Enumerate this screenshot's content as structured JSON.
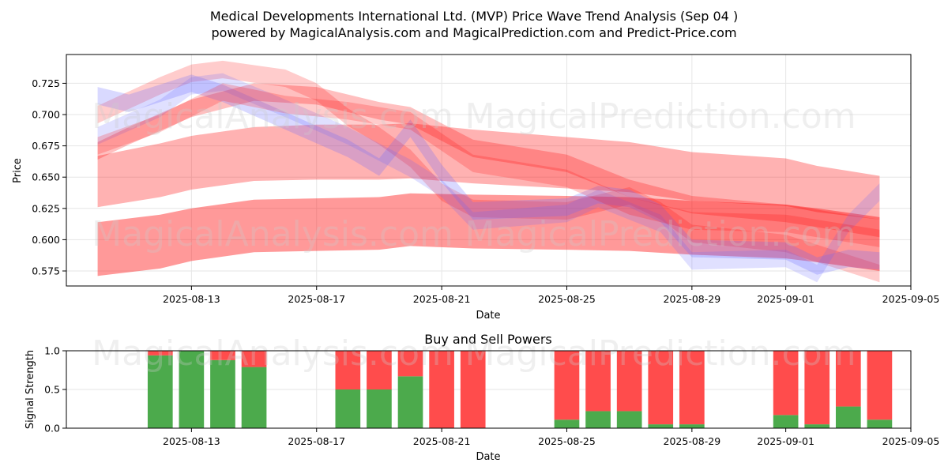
{
  "title_line1": "Medical Developments International Ltd. (MVP) Price Wave Trend Analysis (Sep 04 )",
  "title_line2": "powered by MagicalAnalysis.com and MagicalPrediction.com and Predict-Price.com",
  "watermarks": [
    "MagicalAnalysis.com",
    "MagicalPrediction.com"
  ],
  "chart_data": [
    {
      "type": "area",
      "title": "Medical Developments International Ltd. (MVP) Price Wave Trend Analysis (Sep 04 )",
      "xlabel": "Date",
      "ylabel": "Price",
      "x_ticks": [
        "2025-08-13",
        "2025-08-17",
        "2025-08-21",
        "2025-08-25",
        "2025-08-29",
        "2025-09-01",
        "2025-09-05"
      ],
      "y_ticks": [
        "0.575",
        "0.600",
        "0.625",
        "0.650",
        "0.675",
        "0.700",
        "0.725"
      ],
      "xlim": [
        "2025-08-09",
        "2025-09-05"
      ],
      "ylim": [
        0.563,
        0.748
      ],
      "grid": true,
      "bands": [
        {
          "color": "#ff0000",
          "opacity": 0.3,
          "points": [
            [
              "2025-08-10",
              0.667,
              0.626
            ],
            [
              "2025-08-12",
              0.677,
              0.634
            ],
            [
              "2025-08-13",
              0.683,
              0.64
            ],
            [
              "2025-08-15",
              0.69,
              0.647
            ],
            [
              "2025-08-17",
              0.692,
              0.648
            ],
            [
              "2025-08-19",
              0.692,
              0.648
            ],
            [
              "2025-08-20",
              0.693,
              0.649
            ],
            [
              "2025-08-22",
              0.688,
              0.645
            ],
            [
              "2025-08-25",
              0.682,
              0.641
            ],
            [
              "2025-08-27",
              0.678,
              0.638
            ],
            [
              "2025-08-29",
              0.67,
              0.631
            ],
            [
              "2025-09-01",
              0.665,
              0.627
            ],
            [
              "2025-09-02",
              0.659,
              0.622
            ],
            [
              "2025-09-04",
              0.651,
              0.616
            ]
          ]
        },
        {
          "color": "#ff0000",
          "opacity": 0.4,
          "points": [
            [
              "2025-08-10",
              0.614,
              0.571
            ],
            [
              "2025-08-12",
              0.62,
              0.577
            ],
            [
              "2025-08-13",
              0.625,
              0.583
            ],
            [
              "2025-08-15",
              0.632,
              0.59
            ],
            [
              "2025-08-17",
              0.633,
              0.591
            ],
            [
              "2025-08-19",
              0.634,
              0.592
            ],
            [
              "2025-08-20",
              0.637,
              0.595
            ],
            [
              "2025-08-22",
              0.636,
              0.593
            ],
            [
              "2025-08-25",
              0.635,
              0.592
            ],
            [
              "2025-08-27",
              0.634,
              0.591
            ],
            [
              "2025-08-29",
              0.631,
              0.588
            ],
            [
              "2025-09-01",
              0.628,
              0.585
            ],
            [
              "2025-09-02",
              0.625,
              0.582
            ],
            [
              "2025-09-04",
              0.618,
              0.575
            ]
          ]
        },
        {
          "color": "#ff0000",
          "opacity": 0.25,
          "points": [
            [
              "2025-08-10",
              0.678,
              0.664
            ],
            [
              "2025-08-11",
              0.69,
              0.676
            ],
            [
              "2025-08-13",
              0.712,
              0.698
            ],
            [
              "2025-08-15",
              0.725,
              0.711
            ],
            [
              "2025-08-17",
              0.722,
              0.708
            ],
            [
              "2025-08-18",
              0.716,
              0.702
            ],
            [
              "2025-08-19",
              0.71,
              0.696
            ],
            [
              "2025-08-20",
              0.706,
              0.692
            ],
            [
              "2025-08-22",
              0.68,
              0.666
            ],
            [
              "2025-08-25",
              0.668,
              0.654
            ],
            [
              "2025-08-27",
              0.648,
              0.634
            ],
            [
              "2025-08-29",
              0.635,
              0.621
            ],
            [
              "2025-09-01",
              0.628,
              0.614
            ],
            [
              "2025-09-03",
              0.62,
              0.606
            ],
            [
              "2025-09-04",
              0.616,
              0.602
            ]
          ]
        },
        {
          "color": "#ff0000",
          "opacity": 0.2,
          "points": [
            [
              "2025-08-10",
              0.707,
              0.693
            ],
            [
              "2025-08-12",
              0.73,
              0.716
            ],
            [
              "2025-08-13",
              0.74,
              0.726
            ],
            [
              "2025-08-14",
              0.743,
              0.729
            ],
            [
              "2025-08-16",
              0.736,
              0.722
            ],
            [
              "2025-08-17",
              0.725,
              0.711
            ],
            [
              "2025-08-18",
              0.705,
              0.691
            ],
            [
              "2025-08-19",
              0.69,
              0.676
            ],
            [
              "2025-08-20",
              0.672,
              0.658
            ],
            [
              "2025-08-21",
              0.645,
              0.631
            ],
            [
              "2025-08-22",
              0.632,
              0.618
            ],
            [
              "2025-08-25",
              0.63,
              0.616
            ],
            [
              "2025-08-27",
              0.642,
              0.628
            ],
            [
              "2025-08-28",
              0.63,
              0.616
            ],
            [
              "2025-08-29",
              0.612,
              0.598
            ],
            [
              "2025-09-01",
              0.604,
              0.59
            ],
            [
              "2025-09-02",
              0.596,
              0.582
            ],
            [
              "2025-09-04",
              0.58,
              0.566
            ]
          ]
        },
        {
          "color": "#6666ff",
          "opacity": 0.25,
          "points": [
            [
              "2025-08-10",
              0.722,
              0.708
            ],
            [
              "2025-08-11",
              0.716,
              0.702
            ],
            [
              "2025-08-13",
              0.732,
              0.718
            ],
            [
              "2025-08-14",
              0.724,
              0.71
            ],
            [
              "2025-08-16",
              0.702,
              0.688
            ],
            [
              "2025-08-18",
              0.68,
              0.666
            ],
            [
              "2025-08-19",
              0.665,
              0.651
            ],
            [
              "2025-08-20",
              0.696,
              0.682
            ],
            [
              "2025-08-21",
              0.66,
              0.646
            ],
            [
              "2025-08-22",
              0.63,
              0.616
            ],
            [
              "2025-08-25",
              0.633,
              0.619
            ],
            [
              "2025-08-26",
              0.643,
              0.629
            ],
            [
              "2025-08-27",
              0.64,
              0.626
            ],
            [
              "2025-08-28",
              0.628,
              0.614
            ],
            [
              "2025-08-29",
              0.6,
              0.586
            ],
            [
              "2025-09-01",
              0.598,
              0.584
            ],
            [
              "2025-09-02",
              0.586,
              0.572
            ],
            [
              "2025-09-03",
              0.592,
              0.578
            ],
            [
              "2025-09-04",
              0.59,
              0.576
            ]
          ]
        },
        {
          "color": "#6666ff",
          "opacity": 0.2,
          "points": [
            [
              "2025-08-10",
              0.69,
              0.676
            ],
            [
              "2025-08-12",
              0.712,
              0.698
            ],
            [
              "2025-08-13",
              0.73,
              0.716
            ],
            [
              "2025-08-14",
              0.733,
              0.719
            ],
            [
              "2025-08-16",
              0.712,
              0.698
            ],
            [
              "2025-08-18",
              0.69,
              0.676
            ],
            [
              "2025-08-20",
              0.664,
              0.65
            ],
            [
              "2025-08-21",
              0.648,
              0.634
            ],
            [
              "2025-08-22",
              0.622,
              0.608
            ],
            [
              "2025-08-25",
              0.628,
              0.614
            ],
            [
              "2025-08-26",
              0.64,
              0.626
            ],
            [
              "2025-08-28",
              0.62,
              0.606
            ],
            [
              "2025-08-29",
              0.59,
              0.576
            ],
            [
              "2025-09-01",
              0.592,
              0.578
            ],
            [
              "2025-09-02",
              0.58,
              0.566
            ],
            [
              "2025-09-03",
              0.62,
              0.606
            ],
            [
              "2025-09-04",
              0.645,
              0.631
            ]
          ]
        },
        {
          "color": "#ff0000",
          "opacity": 0.2,
          "points": [
            [
              "2025-08-10",
              0.682,
              0.668
            ],
            [
              "2025-08-12",
              0.7,
              0.686
            ],
            [
              "2025-08-14",
              0.725,
              0.711
            ],
            [
              "2025-08-16",
              0.715,
              0.701
            ],
            [
              "2025-08-18",
              0.71,
              0.696
            ],
            [
              "2025-08-20",
              0.702,
              0.688
            ],
            [
              "2025-08-22",
              0.668,
              0.654
            ],
            [
              "2025-08-25",
              0.656,
              0.642
            ],
            [
              "2025-08-27",
              0.634,
              0.62
            ],
            [
              "2025-08-29",
              0.622,
              0.608
            ],
            [
              "2025-09-01",
              0.62,
              0.606
            ],
            [
              "2025-09-04",
              0.608,
              0.594
            ]
          ]
        }
      ]
    },
    {
      "type": "bar",
      "title": "Buy and Sell Powers",
      "xlabel": "Date",
      "ylabel": "Signal Strength",
      "x_ticks": [
        "2025-08-13",
        "2025-08-17",
        "2025-08-21",
        "2025-08-25",
        "2025-08-29",
        "2025-09-01",
        "2025-09-05"
      ],
      "y_ticks": [
        "0.0",
        "0.5",
        "1.0"
      ],
      "ylim": [
        0,
        1
      ],
      "grid": true,
      "series": [
        {
          "name": "buy",
          "color": "#4caa4c"
        },
        {
          "name": "sell",
          "color": "#ff4c4c"
        }
      ],
      "bars": [
        {
          "date": "2025-08-12",
          "buy": 0.94,
          "sell": 0.06
        },
        {
          "date": "2025-08-13",
          "buy": 1.0,
          "sell": 0.0
        },
        {
          "date": "2025-08-14",
          "buy": 0.88,
          "sell": 0.12
        },
        {
          "date": "2025-08-15",
          "buy": 0.79,
          "sell": 0.21
        },
        {
          "date": "2025-08-18",
          "buy": 0.5,
          "sell": 0.5
        },
        {
          "date": "2025-08-19",
          "buy": 0.5,
          "sell": 0.5
        },
        {
          "date": "2025-08-20",
          "buy": 0.67,
          "sell": 0.33
        },
        {
          "date": "2025-08-21",
          "buy": 0.0,
          "sell": 1.0
        },
        {
          "date": "2025-08-22",
          "buy": 0.0,
          "sell": 1.0
        },
        {
          "date": "2025-08-25",
          "buy": 0.11,
          "sell": 0.89
        },
        {
          "date": "2025-08-26",
          "buy": 0.22,
          "sell": 0.78
        },
        {
          "date": "2025-08-27",
          "buy": 0.22,
          "sell": 0.78
        },
        {
          "date": "2025-08-28",
          "buy": 0.05,
          "sell": 0.95
        },
        {
          "date": "2025-08-29",
          "buy": 0.05,
          "sell": 0.95
        },
        {
          "date": "2025-09-01",
          "buy": 0.17,
          "sell": 0.83
        },
        {
          "date": "2025-09-02",
          "buy": 0.05,
          "sell": 0.95
        },
        {
          "date": "2025-09-03",
          "buy": 0.28,
          "sell": 0.72
        },
        {
          "date": "2025-09-04",
          "buy": 0.11,
          "sell": 0.89
        }
      ]
    }
  ]
}
